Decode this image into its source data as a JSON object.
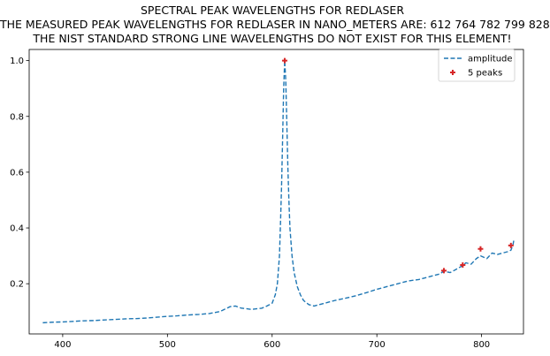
{
  "chart_data": {
    "type": "line",
    "title": "SPECTRAL PEAK WAVELENGTHS FOR REDLASER",
    "subtitle_lines": [
      "THE MEASURED PEAK WAVELENGTHS FOR REDLASER IN NANO_METERS ARE: 612 764 782 799 828",
      "THE NIST STANDARD STRONG LINE WAVELENGTHS DO NOT EXIST FOR THIS ELEMENT!"
    ],
    "xlabel": "",
    "ylabel": "",
    "xlim": [
      368,
      840
    ],
    "ylim": [
      0.02,
      1.04
    ],
    "xticks": [
      400,
      500,
      600,
      700,
      800
    ],
    "yticks": [
      0.2,
      0.4,
      0.6,
      0.8,
      1.0
    ],
    "ytick_labels": [
      "0.2",
      "0.4",
      "0.6",
      "0.8",
      "1.0"
    ],
    "line_color": "#1f77b4",
    "marker_color": "#d62728",
    "legend_position": "top-right",
    "series": [
      {
        "name": "amplitude",
        "style": "dashed",
        "x": [
          381,
          390,
          400,
          410,
          420,
          430,
          440,
          450,
          460,
          470,
          480,
          490,
          500,
          510,
          520,
          530,
          540,
          550,
          560,
          565,
          570,
          580,
          590,
          595,
          600,
          603,
          605,
          607,
          608,
          609,
          610,
          611,
          612,
          613,
          614,
          615,
          616,
          617,
          619,
          621,
          624,
          627,
          630,
          635,
          640,
          650,
          660,
          670,
          680,
          690,
          700,
          710,
          720,
          730,
          740,
          750,
          760,
          764,
          770,
          775,
          782,
          785,
          790,
          795,
          799,
          805,
          810,
          815,
          820,
          825,
          828,
          830,
          831
        ],
        "y": [
          0.06,
          0.062,
          0.063,
          0.065,
          0.067,
          0.068,
          0.07,
          0.072,
          0.074,
          0.075,
          0.077,
          0.08,
          0.083,
          0.085,
          0.088,
          0.09,
          0.093,
          0.1,
          0.118,
          0.12,
          0.113,
          0.108,
          0.112,
          0.12,
          0.13,
          0.16,
          0.2,
          0.3,
          0.42,
          0.55,
          0.72,
          0.9,
          1.0,
          0.93,
          0.78,
          0.62,
          0.5,
          0.4,
          0.3,
          0.24,
          0.19,
          0.16,
          0.14,
          0.125,
          0.12,
          0.13,
          0.14,
          0.148,
          0.157,
          0.168,
          0.18,
          0.19,
          0.2,
          0.21,
          0.215,
          0.225,
          0.235,
          0.245,
          0.24,
          0.25,
          0.265,
          0.275,
          0.27,
          0.29,
          0.3,
          0.29,
          0.31,
          0.305,
          0.31,
          0.315,
          0.32,
          0.34,
          0.36
        ]
      },
      {
        "name": "5 peaks",
        "style": "markers",
        "x": [
          612,
          764,
          782,
          799,
          828
        ],
        "y": [
          1.0,
          0.247,
          0.267,
          0.325,
          0.337
        ]
      }
    ]
  }
}
